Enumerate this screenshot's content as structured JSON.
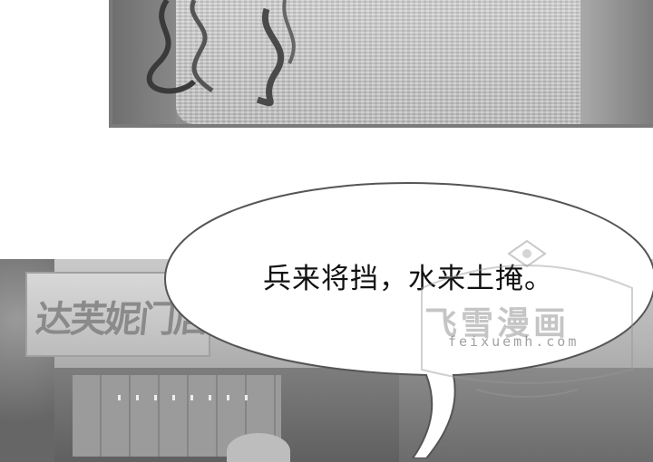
{
  "panels": {
    "top": {
      "icon": "knit-sweater-illustration"
    },
    "bottom": {
      "icon": "street-storefront-illustration",
      "sign_text": "达芙妮门店"
    }
  },
  "dialogue": {
    "text": "兵来将挡，水来土掩。"
  },
  "watermark": {
    "text": "飞雪漫画",
    "url": "feixuemh.com"
  },
  "colors": {
    "bubble_fill": "#ffffff",
    "bubble_stroke": "#555555",
    "text": "#111111"
  }
}
